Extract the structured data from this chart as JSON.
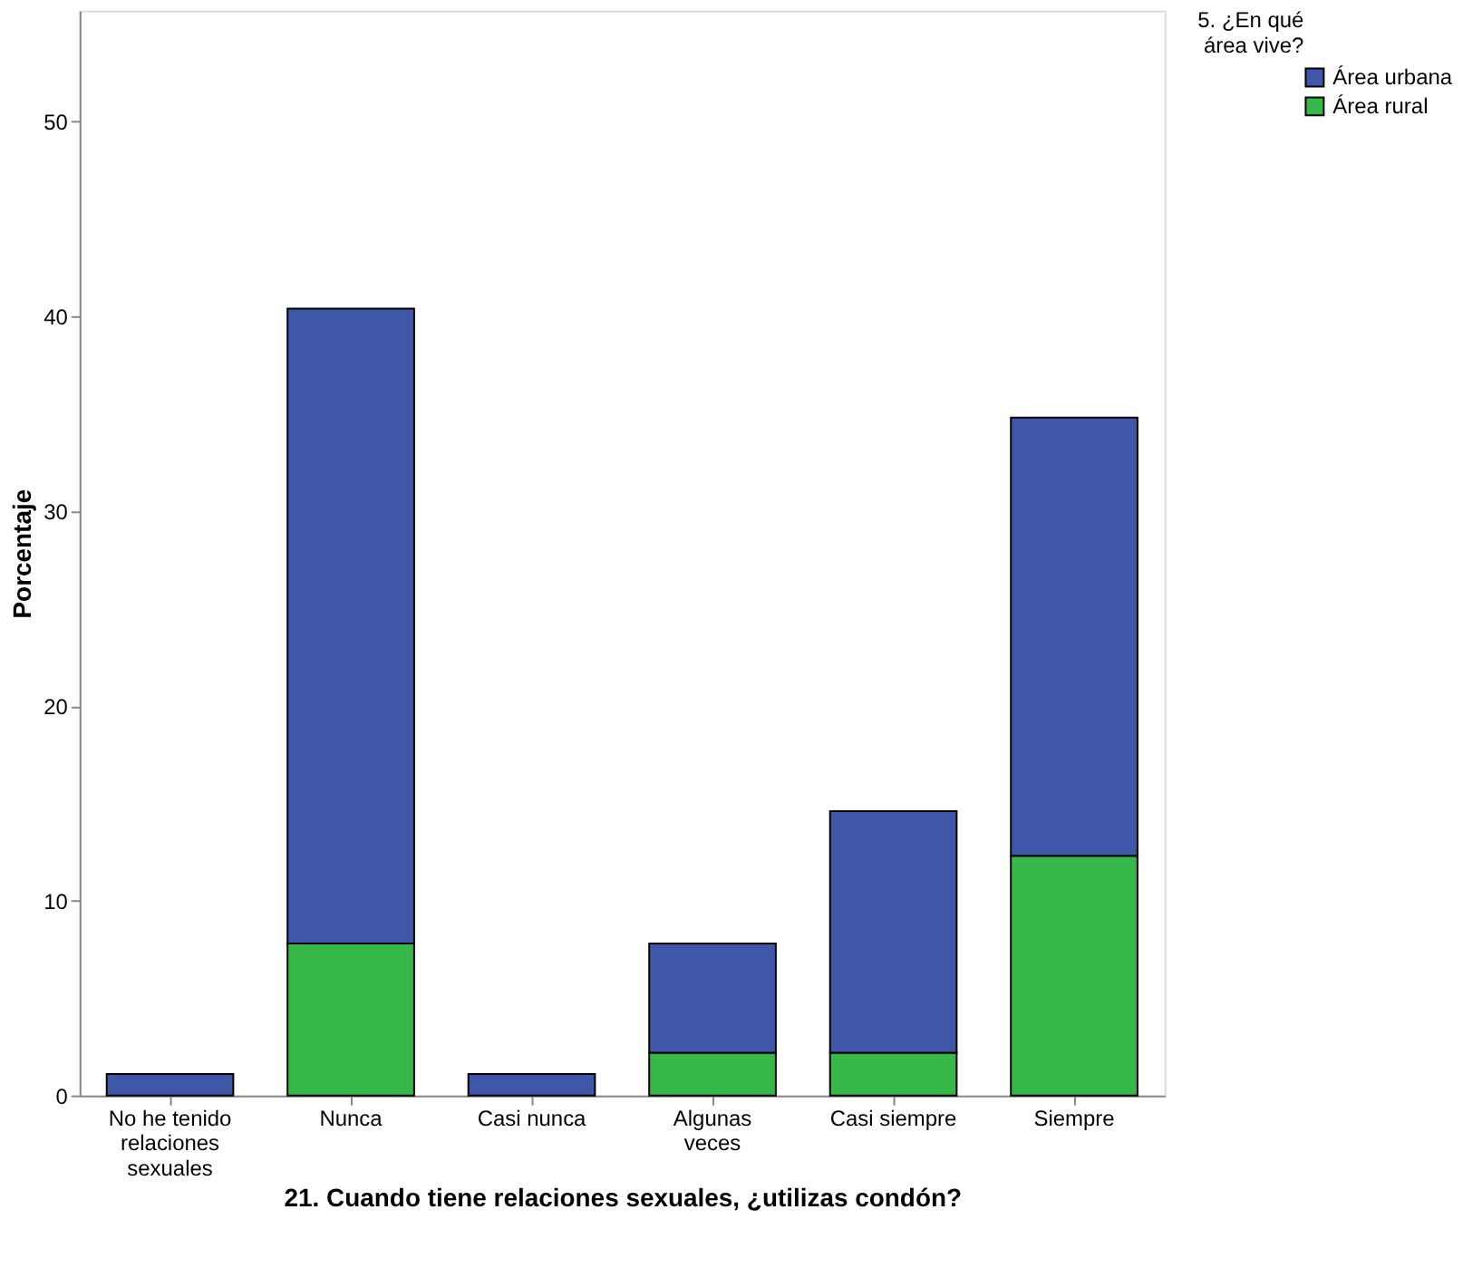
{
  "chart_data": {
    "type": "bar",
    "stacked": true,
    "xlabel": "21. Cuando tiene relaciones sexuales, ¿utilizas condón?",
    "ylabel": "Porcentaje",
    "legend_title": "5. ¿En qué área vive?",
    "categories": [
      "No he tenido relaciones sexuales",
      "Nunca",
      "Casi nunca",
      "Algunas veces",
      "Casi siempre",
      "Siempre"
    ],
    "series": [
      {
        "name": "Área rural",
        "color": "#37b94a",
        "values": [
          null,
          7.8,
          null,
          2.2,
          2.2,
          12.3
        ]
      },
      {
        "name": "Área urbana",
        "color": "#3f57a8",
        "values": [
          1.1,
          32.6,
          1.1,
          5.6,
          12.4,
          22.5
        ]
      }
    ],
    "ylim": [
      0,
      55.7
    ],
    "yticks": [
      0,
      10,
      20,
      30,
      40,
      50
    ],
    "grid": false,
    "legend": "top right"
  }
}
